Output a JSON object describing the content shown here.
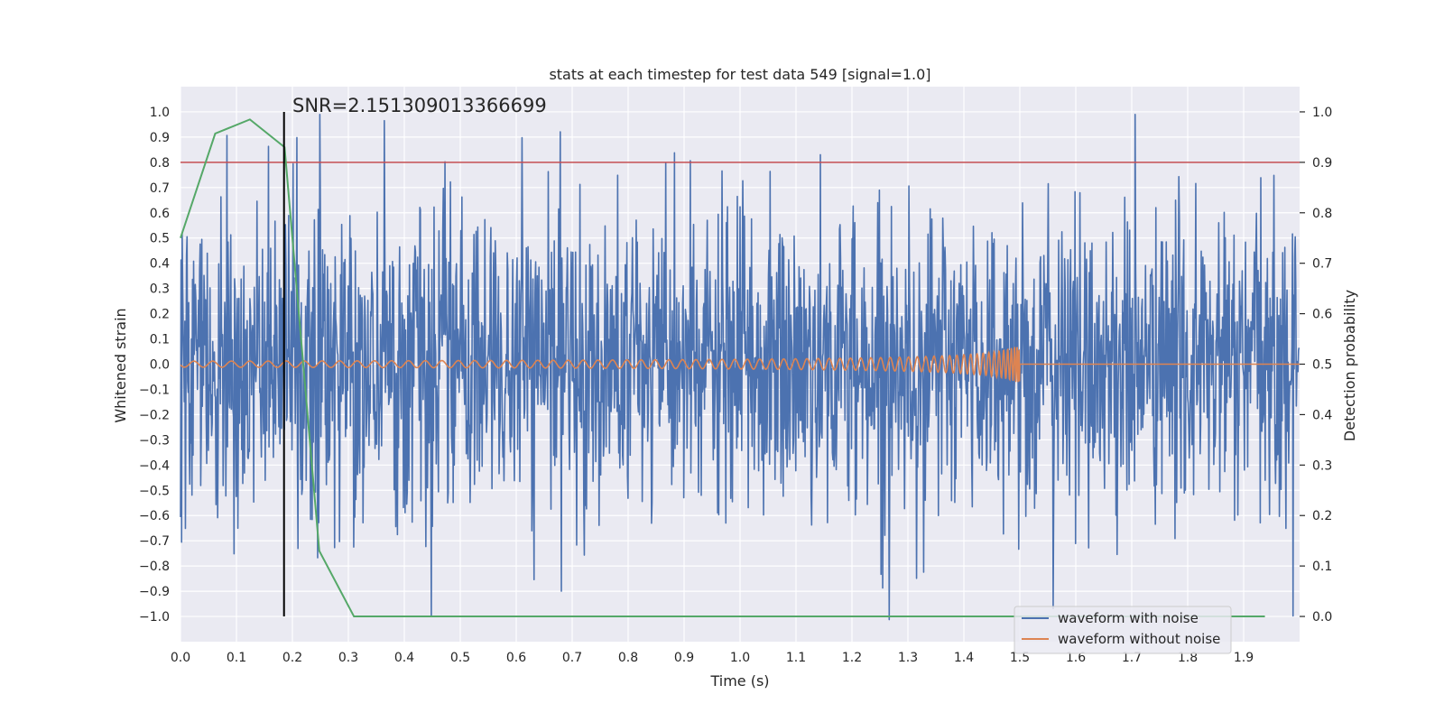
{
  "chart_data": {
    "type": "line",
    "title": "stats at each timestep for test data 549 [signal=1.0]",
    "xlabel": "Time (s)",
    "ylabel_left": "Whitened strain",
    "ylabel_right": "Detection probability",
    "xlim": [
      0.0,
      2.0
    ],
    "ylim_left": [
      -1.1,
      1.1
    ],
    "ylim_right": [
      -0.05,
      1.05
    ],
    "x_ticks": [
      "0.0",
      "0.1",
      "0.2",
      "0.3",
      "0.4",
      "0.5",
      "0.6",
      "0.7",
      "0.8",
      "0.9",
      "1.0",
      "1.1",
      "1.2",
      "1.3",
      "1.4",
      "1.5",
      "1.6",
      "1.7",
      "1.8",
      "1.9"
    ],
    "y_left_ticks": [
      "1.0",
      "0.9",
      "0.8",
      "0.7",
      "0.6",
      "0.5",
      "0.4",
      "0.3",
      "0.2",
      "0.1",
      "0.0",
      "−0.1",
      "−0.2",
      "−0.3",
      "−0.4",
      "−0.5",
      "−0.6",
      "−0.7",
      "−0.8",
      "−0.9",
      "−1.0"
    ],
    "y_right_ticks": [
      "1.0",
      "0.9",
      "0.8",
      "0.7",
      "0.6",
      "0.5",
      "0.4",
      "0.3",
      "0.2",
      "0.1",
      "0.0"
    ],
    "annotation": "SNR=2.151309013366699",
    "snr_marker_time": 0.185,
    "threshold": 0.9,
    "series": [
      {
        "name": "waveform with noise",
        "color": "#4c72b0",
        "description": "whitened noisy strain, random-like samples mostly within ±0.5, peaks near ±1.0"
      },
      {
        "name": "waveform without noise",
        "color": "#dd8452",
        "description": "chirp signal, amplitude ~0.01 growing to ~0.07, ends at t=1.5"
      },
      {
        "name": "detection probability",
        "color": "#55a868",
        "x": [
          0.0,
          0.062,
          0.124,
          0.186,
          0.248,
          0.31,
          0.372,
          0.5,
          1.0,
          1.5,
          1.938
        ],
        "y": [
          0.75,
          0.957,
          0.985,
          0.93,
          0.13,
          0.0,
          0.0,
          0.0,
          0.0,
          0.0,
          0.0
        ]
      }
    ],
    "threshold_color": "#c44e52",
    "snr_marker_color": "#000000",
    "legend": {
      "placement": "bottom-right",
      "entries": [
        "waveform with noise",
        "waveform without noise"
      ]
    }
  }
}
